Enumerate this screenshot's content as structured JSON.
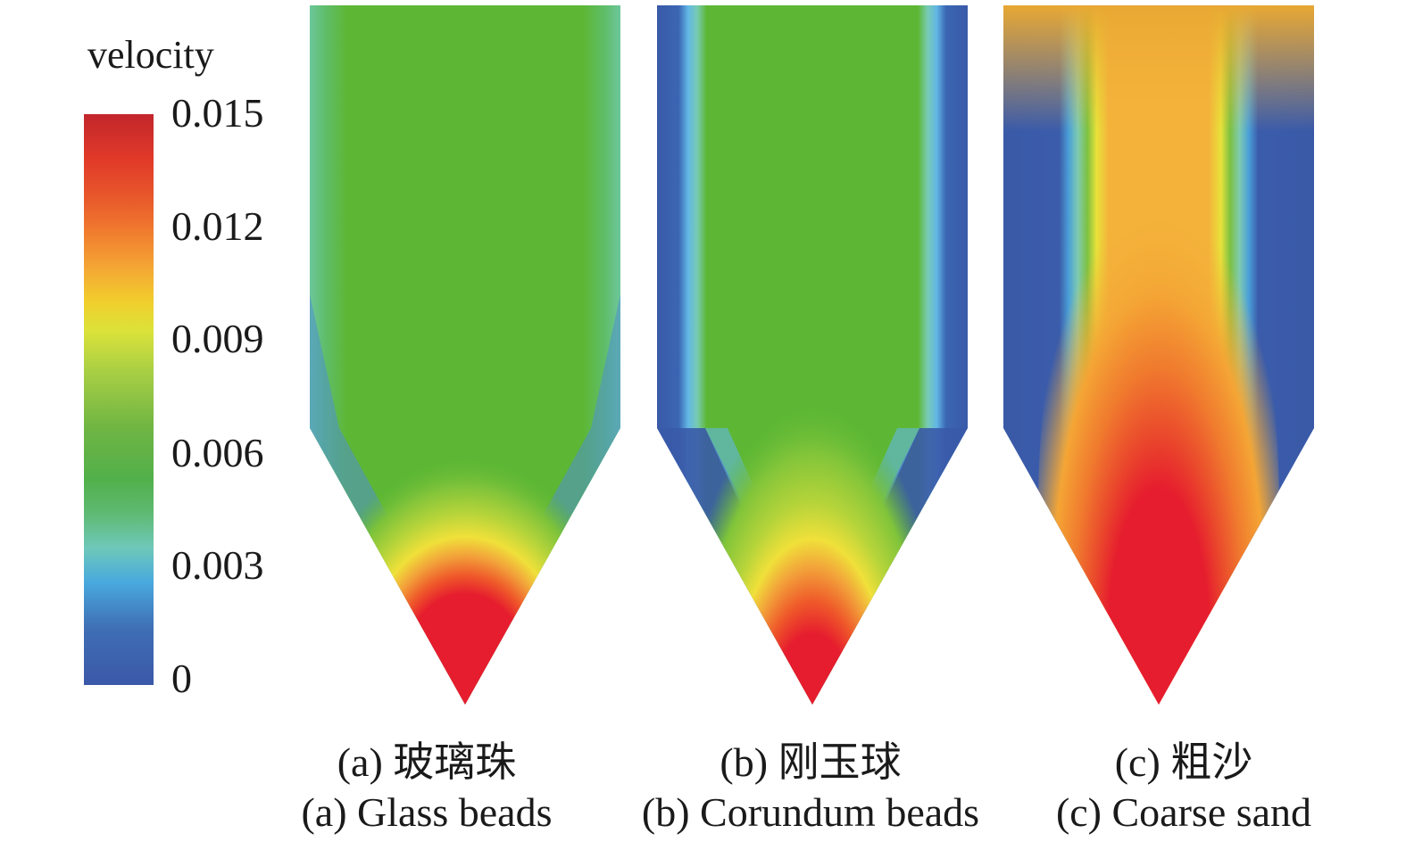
{
  "legend": {
    "title": "velocity",
    "ticks": [
      "0.015",
      "0.012",
      "0.009",
      "0.006",
      "0.003",
      "0"
    ],
    "colors": [
      "#c2262b",
      "#e13a29",
      "#f0782e",
      "#f4a734",
      "#f1cf2c",
      "#dbe23a",
      "#a9cf44",
      "#6fb543",
      "#52b04a",
      "#5fba73",
      "#6ec8b9",
      "#49a9de",
      "#3f6fb5",
      "#3b58a8"
    ]
  },
  "panels": [
    {
      "caption_cn": "(a) 玻璃珠",
      "caption_en": "(a) Glass beads",
      "colors": {
        "wall": "#5fbd78",
        "bulk": "#5db734",
        "plume": "#e61d2e"
      }
    },
    {
      "caption_cn": "(b) 刚玉球",
      "caption_en": "(b) Corundum beads",
      "colors": {
        "wall": "#3a5aa8",
        "bulk": "#5db734",
        "plume": "#e61d2e"
      }
    },
    {
      "caption_cn": "(c) 粗沙",
      "caption_en": "(c) Coarse sand",
      "colors": {
        "wall": "#3a5aa8",
        "bulk": "#f4b23a",
        "plume": "#e61d2e"
      }
    }
  ]
}
